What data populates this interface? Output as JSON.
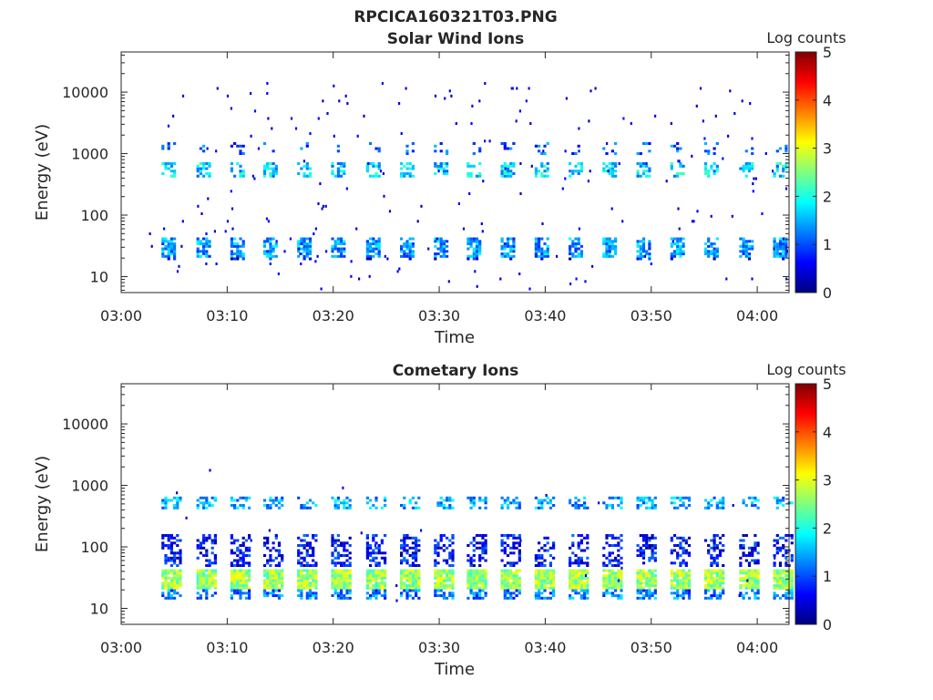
{
  "figure": {
    "title": "RPCICA160321T03.PNG"
  },
  "colormap": {
    "name": "jet",
    "stops": [
      "#00007f",
      "#0000ff",
      "#007fff",
      "#00ffff",
      "#7fff7f",
      "#ffff00",
      "#ff7f00",
      "#ff0000",
      "#7f0000"
    ]
  },
  "chart_data": [
    {
      "type": "heatmap",
      "title": "Solar Wind Ions",
      "xlabel": "Time",
      "ylabel": "Energy (eV)",
      "xlim": [
        "03:00",
        "04:03"
      ],
      "ylim": [
        5.5,
        45000
      ],
      "yscale": "log",
      "x_ticks": [
        "03:00",
        "03:10",
        "03:20",
        "03:30",
        "03:40",
        "03:50",
        "04:00"
      ],
      "y_ticks": [
        10,
        100,
        1000,
        10000
      ],
      "y_tick_labels": [
        "10",
        "100",
        "1000",
        "10000"
      ],
      "colorbar": {
        "label": "Log counts",
        "range": [
          0,
          5
        ],
        "ticks": [
          "0",
          "1",
          "2",
          "3",
          "4",
          "5"
        ]
      },
      "sweep_start_minutes": [
        3.8,
        7.1,
        10.3,
        13.4,
        16.6,
        19.8,
        23.1,
        26.3,
        29.5,
        32.6,
        35.8,
        39.0,
        42.2,
        45.4,
        48.6,
        51.8,
        55.0,
        58.3,
        61.5
      ],
      "sweep_duration_minutes": 1.4,
      "bands": [
        {
          "name": "alpha",
          "e_low": 400,
          "e_high": 700,
          "level": 1.6,
          "density": 0.55
        },
        {
          "name": "proton_high",
          "e_low": 900,
          "e_high": 1500,
          "level": 1.0,
          "density": 0.18
        },
        {
          "name": "proton",
          "e_low": 20,
          "e_high": 40,
          "level": 1.3,
          "density": 0.75
        },
        {
          "name": "proton_low",
          "e_low": 17,
          "e_high": 20,
          "level": 0.5,
          "density": 0.35
        }
      ],
      "background": {
        "e_low": 6,
        "e_high": 14000,
        "count": 200,
        "level": 0.3
      }
    },
    {
      "type": "heatmap",
      "title": "Cometary Ions",
      "xlabel": "Time",
      "ylabel": "Energy (eV)",
      "xlim": [
        "03:00",
        "04:03"
      ],
      "ylim": [
        5.5,
        45000
      ],
      "yscale": "log",
      "x_ticks": [
        "03:00",
        "03:10",
        "03:20",
        "03:30",
        "03:40",
        "03:50",
        "04:00"
      ],
      "y_ticks": [
        10,
        100,
        1000,
        10000
      ],
      "y_tick_labels": [
        "10",
        "100",
        "1000",
        "10000"
      ],
      "colorbar": {
        "label": "Log counts",
        "range": [
          0,
          5
        ],
        "ticks": [
          "0",
          "1",
          "2",
          "3",
          "4",
          "5"
        ]
      },
      "sweep_start_minutes": [
        3.8,
        7.1,
        10.3,
        13.4,
        16.6,
        19.8,
        23.1,
        26.3,
        29.5,
        32.6,
        35.8,
        39.0,
        42.2,
        45.4,
        48.6,
        51.8,
        55.0,
        58.3,
        61.5
      ],
      "sweep_duration_minutes": 1.8,
      "bands": [
        {
          "name": "core",
          "e_low": 20,
          "e_high": 40,
          "level": 2.6,
          "density": 0.95
        },
        {
          "name": "core_edge",
          "e_low": 14,
          "e_high": 20,
          "level": 1.2,
          "density": 0.6
        },
        {
          "name": "warm",
          "e_low": 45,
          "e_high": 160,
          "level": 0.6,
          "density": 0.45
        },
        {
          "name": "high",
          "e_low": 400,
          "e_high": 650,
          "level": 1.4,
          "density": 0.45
        }
      ],
      "background": {
        "e_low": 8,
        "e_high": 2000,
        "count": 25,
        "level": 0.3
      }
    }
  ]
}
